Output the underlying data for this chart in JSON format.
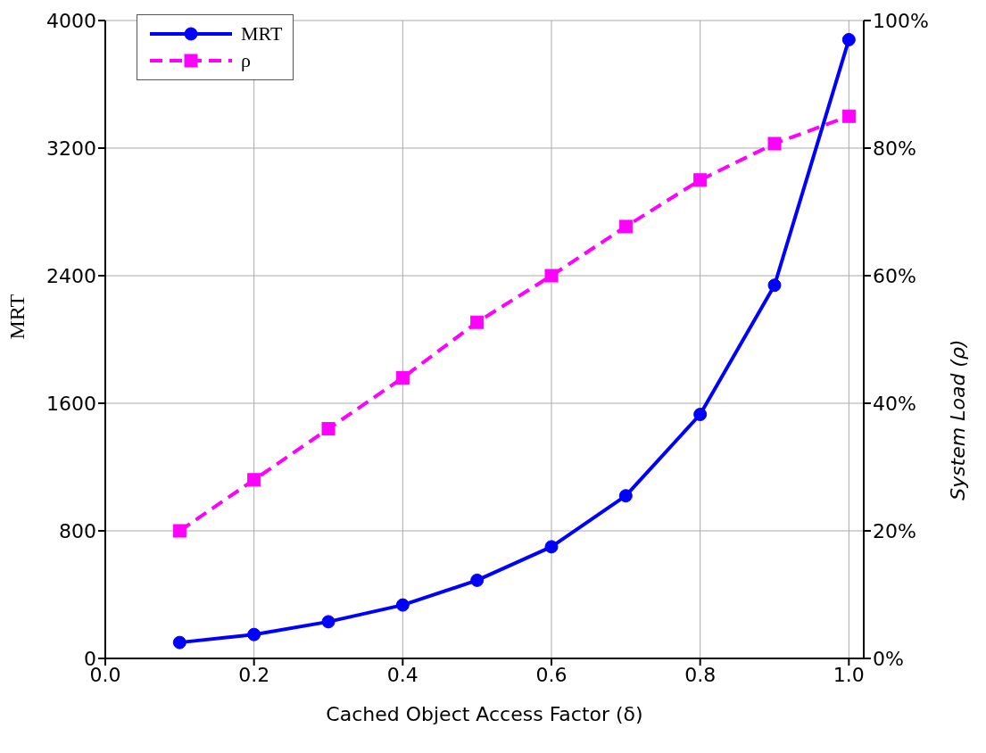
{
  "chart_data": {
    "type": "line",
    "xlabel": "Cached Object Access Factor (δ)",
    "ylabel": "MRT",
    "y2label": "System Load (ρ)",
    "x": [
      0.1,
      0.2,
      0.3,
      0.4,
      0.5,
      0.6,
      0.7,
      0.8,
      0.9,
      1.0
    ],
    "series": [
      {
        "name": "MRT",
        "color": "#0000ff",
        "marker": "circle",
        "line_style": "solid",
        "values": [
          100,
          150,
          230,
          335,
          490,
          700,
          1020,
          1530,
          2340,
          3880
        ]
      },
      {
        "name": "ρ",
        "color": "#ff00ff",
        "marker": "square",
        "line_style": "dashed",
        "axis": "y2",
        "values": [
          20,
          28,
          36,
          44,
          52.7,
          60,
          67.7,
          75,
          80.7,
          85
        ]
      }
    ],
    "xlim": [
      0,
      1.02
    ],
    "xticks": [
      {
        "value": 0,
        "label": "0.0"
      },
      0.2,
      0.4,
      0.6,
      0.8,
      {
        "value": 1,
        "label": "1.0"
      }
    ],
    "ylim": [
      0,
      4000
    ],
    "yticks": [
      0,
      800,
      1600,
      2400,
      3200,
      4000
    ],
    "y2lim": [
      0,
      100
    ],
    "y2ticks": [
      {
        "value": 0,
        "label": "0%"
      },
      {
        "value": 20,
        "label": "20%"
      },
      {
        "value": 40,
        "label": "40%"
      },
      {
        "value": 60,
        "label": "60%"
      },
      {
        "value": 80,
        "label": "80%"
      },
      {
        "value": 100,
        "label": "100%"
      }
    ],
    "grid": true,
    "legend": "top left"
  }
}
